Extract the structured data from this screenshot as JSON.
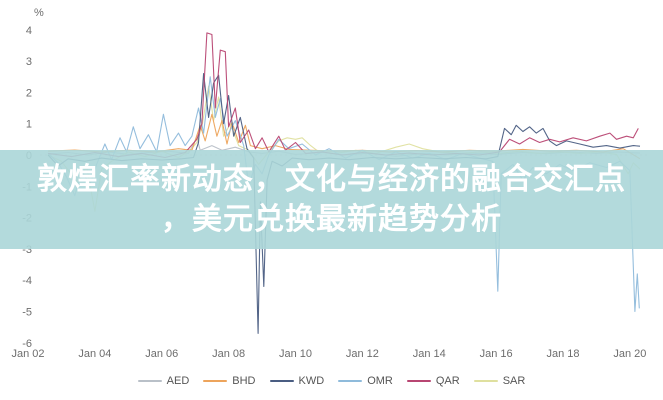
{
  "overlay": {
    "line1": "敦煌汇率新动态，文化与经济的融合交汇点",
    "line2": "，美元兑换最新趋势分析",
    "band_color": "rgba(171,214,216,0.9)",
    "text_color": "#ffffff"
  },
  "chart_data": {
    "type": "line",
    "title": "",
    "unit_label": "%",
    "xlabel": "",
    "ylabel": "%",
    "ylim": [
      -6,
      4
    ],
    "yticks": [
      4,
      3,
      2,
      1,
      0,
      -1,
      -2,
      -3,
      -4,
      -5,
      -6
    ],
    "xticks": [
      {
        "day": 2,
        "label": "Jan 02"
      },
      {
        "day": 4,
        "label": "Jan 04"
      },
      {
        "day": 6,
        "label": "Jan 06"
      },
      {
        "day": 8,
        "label": "Jan 08"
      },
      {
        "day": 10,
        "label": "Jan 10"
      },
      {
        "day": 12,
        "label": "Jan 12"
      },
      {
        "day": 14,
        "label": "Jan 14"
      },
      {
        "day": 16,
        "label": "Jan 16"
      },
      {
        "day": 18,
        "label": "Jan 18"
      },
      {
        "day": 20,
        "label": "Jan 20"
      }
    ],
    "grid": "dashed zero line only",
    "legend_position": "bottom",
    "zero_line_color": "#d9d9d9",
    "series": [
      {
        "name": "AED",
        "color": "#b9c0c8",
        "points": [
          [
            2.6,
            0.03
          ],
          [
            3.2,
            0.08
          ],
          [
            3.8,
            0.0
          ],
          [
            4.4,
            0.1
          ],
          [
            5.0,
            0.02
          ],
          [
            5.6,
            0.08
          ],
          [
            6.2,
            0.12
          ],
          [
            6.8,
            0.05
          ],
          [
            7.05,
            0.55
          ],
          [
            7.15,
            0.15
          ],
          [
            7.5,
            0.3
          ],
          [
            7.8,
            0.15
          ],
          [
            8.2,
            0.25
          ],
          [
            8.6,
            0.1
          ],
          [
            9.0,
            0.05
          ],
          [
            9.5,
            0.12
          ],
          [
            10.0,
            0.02
          ],
          [
            10.8,
            0.08
          ],
          [
            11.5,
            0.0
          ],
          [
            12.2,
            0.06
          ],
          [
            13.0,
            -0.04
          ],
          [
            13.8,
            0.05
          ],
          [
            14.5,
            0.0
          ],
          [
            15.2,
            0.06
          ],
          [
            16.0,
            0.02
          ],
          [
            16.8,
            0.08
          ],
          [
            17.5,
            0.04
          ],
          [
            18.2,
            0.1
          ],
          [
            19.0,
            0.05
          ],
          [
            19.6,
            0.1
          ],
          [
            20.3,
            0.06
          ]
        ]
      },
      {
        "name": "BHD",
        "color": "#eda45c",
        "points": [
          [
            2.6,
            0.12
          ],
          [
            3.4,
            0.16
          ],
          [
            4.2,
            0.1
          ],
          [
            5.0,
            0.15
          ],
          [
            5.8,
            0.1
          ],
          [
            6.5,
            0.2
          ],
          [
            6.9,
            0.15
          ],
          [
            7.15,
            0.95
          ],
          [
            7.3,
            0.45
          ],
          [
            7.5,
            1.3
          ],
          [
            7.65,
            0.6
          ],
          [
            7.8,
            1.1
          ],
          [
            7.95,
            0.35
          ],
          [
            8.1,
            1.05
          ],
          [
            8.3,
            0.4
          ],
          [
            8.5,
            0.95
          ],
          [
            8.65,
            0.3
          ],
          [
            9.0,
            0.2
          ],
          [
            9.4,
            0.3
          ],
          [
            9.8,
            0.18
          ],
          [
            10.5,
            0.15
          ],
          [
            11.2,
            0.12
          ],
          [
            12.0,
            0.15
          ],
          [
            12.8,
            0.1
          ],
          [
            13.6,
            0.14
          ],
          [
            14.4,
            0.1
          ],
          [
            15.2,
            0.15
          ],
          [
            16.0,
            0.12
          ],
          [
            16.8,
            0.18
          ],
          [
            17.6,
            0.12
          ],
          [
            18.4,
            0.15
          ],
          [
            19.2,
            0.1
          ],
          [
            19.8,
            0.2
          ],
          [
            20.3,
            -0.12
          ]
        ]
      },
      {
        "name": "KWD",
        "color": "#4a5d82",
        "points": [
          [
            2.6,
            0.0
          ],
          [
            2.9,
            -0.35
          ],
          [
            3.2,
            -0.12
          ],
          [
            3.7,
            -0.2
          ],
          [
            4.2,
            -0.1
          ],
          [
            4.8,
            -0.18
          ],
          [
            5.4,
            -0.12
          ],
          [
            6.0,
            -0.16
          ],
          [
            6.6,
            -0.12
          ],
          [
            6.95,
            -0.08
          ],
          [
            7.1,
            0.4
          ],
          [
            7.25,
            2.6
          ],
          [
            7.4,
            1.2
          ],
          [
            7.55,
            2.3
          ],
          [
            7.7,
            2.55
          ],
          [
            7.85,
            1.0
          ],
          [
            8.0,
            1.9
          ],
          [
            8.15,
            0.6
          ],
          [
            8.35,
            1.2
          ],
          [
            8.55,
            0.2
          ],
          [
            8.75,
            -0.1
          ],
          [
            8.88,
            -5.7
          ],
          [
            8.95,
            -1.5
          ],
          [
            9.05,
            -4.2
          ],
          [
            9.15,
            -0.8
          ],
          [
            9.3,
            -0.2
          ],
          [
            9.6,
            -0.35
          ],
          [
            9.9,
            -0.1
          ],
          [
            10.4,
            -0.15
          ],
          [
            11.0,
            -0.1
          ],
          [
            11.6,
            -0.15
          ],
          [
            12.3,
            -0.08
          ],
          [
            13.0,
            -0.12
          ],
          [
            13.7,
            -0.08
          ],
          [
            14.4,
            -0.12
          ],
          [
            15.1,
            -0.08
          ],
          [
            15.7,
            -0.12
          ],
          [
            16.05,
            -0.05
          ],
          [
            16.25,
            0.85
          ],
          [
            16.45,
            0.65
          ],
          [
            16.6,
            0.95
          ],
          [
            16.8,
            0.75
          ],
          [
            17.0,
            0.9
          ],
          [
            17.2,
            0.7
          ],
          [
            17.4,
            0.85
          ],
          [
            17.6,
            0.45
          ],
          [
            17.8,
            0.3
          ],
          [
            18.1,
            0.45
          ],
          [
            18.5,
            0.35
          ],
          [
            18.9,
            0.25
          ],
          [
            19.3,
            0.3
          ],
          [
            19.7,
            0.22
          ],
          [
            20.1,
            0.3
          ],
          [
            20.3,
            0.28
          ]
        ]
      },
      {
        "name": "OMR",
        "color": "#8fbbdb",
        "points": [
          [
            2.6,
            0.05
          ],
          [
            2.9,
            -0.25
          ],
          [
            3.15,
            -0.7
          ],
          [
            3.4,
            -1.3
          ],
          [
            3.6,
            -0.5
          ],
          [
            3.85,
            -0.95
          ],
          [
            4.05,
            -0.3
          ],
          [
            4.3,
            0.35
          ],
          [
            4.5,
            -0.15
          ],
          [
            4.75,
            0.55
          ],
          [
            4.95,
            0.1
          ],
          [
            5.15,
            0.9
          ],
          [
            5.35,
            0.2
          ],
          [
            5.6,
            0.65
          ],
          [
            5.85,
            0.1
          ],
          [
            6.05,
            1.3
          ],
          [
            6.25,
            0.3
          ],
          [
            6.5,
            0.7
          ],
          [
            6.7,
            0.3
          ],
          [
            6.9,
            0.6
          ],
          [
            7.1,
            1.5
          ],
          [
            7.25,
            0.7
          ],
          [
            7.45,
            2.5
          ],
          [
            7.6,
            1.2
          ],
          [
            7.75,
            1.8
          ],
          [
            7.95,
            0.6
          ],
          [
            8.2,
            1.1
          ],
          [
            8.45,
            0.3
          ],
          [
            8.6,
            -1.0
          ],
          [
            8.8,
            -0.3
          ],
          [
            9.0,
            -0.6
          ],
          [
            9.2,
            0.0
          ],
          [
            9.5,
            0.5
          ],
          [
            9.8,
            0.2
          ],
          [
            10.2,
            0.35
          ],
          [
            10.6,
            0.0
          ],
          [
            11.0,
            0.2
          ],
          [
            11.5,
            -0.1
          ],
          [
            12.0,
            0.15
          ],
          [
            12.5,
            -0.15
          ],
          [
            13.0,
            0.1
          ],
          [
            13.5,
            -0.1
          ],
          [
            14.0,
            0.05
          ],
          [
            14.5,
            -0.15
          ],
          [
            15.0,
            0.05
          ],
          [
            15.5,
            -0.1
          ],
          [
            15.9,
            -0.2
          ],
          [
            16.05,
            -4.35
          ],
          [
            16.15,
            -0.6
          ],
          [
            16.5,
            -0.3
          ],
          [
            16.8,
            -0.8
          ],
          [
            17.1,
            -0.4
          ],
          [
            17.5,
            -0.6
          ],
          [
            17.9,
            -0.3
          ],
          [
            18.3,
            -0.5
          ],
          [
            18.8,
            -0.25
          ],
          [
            19.3,
            -0.4
          ],
          [
            19.7,
            -0.2
          ],
          [
            20.0,
            -0.5
          ],
          [
            20.15,
            -5.0
          ],
          [
            20.22,
            -3.8
          ],
          [
            20.28,
            -4.9
          ]
        ]
      },
      {
        "name": "QAR",
        "color": "#b84672",
        "points": [
          [
            2.6,
            0.05
          ],
          [
            3.3,
            -0.05
          ],
          [
            4.0,
            0.08
          ],
          [
            4.7,
            -0.05
          ],
          [
            5.4,
            0.05
          ],
          [
            6.1,
            -0.08
          ],
          [
            6.7,
            0.08
          ],
          [
            7.05,
            0.5
          ],
          [
            7.2,
            1.0
          ],
          [
            7.35,
            3.9
          ],
          [
            7.5,
            3.85
          ],
          [
            7.6,
            1.5
          ],
          [
            7.75,
            3.35
          ],
          [
            7.9,
            3.3
          ],
          [
            8.0,
            0.9
          ],
          [
            8.2,
            1.5
          ],
          [
            8.35,
            0.4
          ],
          [
            8.6,
            0.8
          ],
          [
            8.8,
            0.2
          ],
          [
            9.0,
            0.55
          ],
          [
            9.2,
            0.1
          ],
          [
            9.5,
            0.6
          ],
          [
            9.7,
            0.15
          ],
          [
            10.0,
            0.4
          ],
          [
            10.3,
            0.05
          ],
          [
            10.8,
            0.1
          ],
          [
            11.4,
            0.0
          ],
          [
            12.0,
            0.08
          ],
          [
            12.7,
            0.0
          ],
          [
            13.4,
            0.06
          ],
          [
            14.1,
            0.0
          ],
          [
            14.8,
            0.05
          ],
          [
            15.5,
            0.0
          ],
          [
            16.1,
            0.1
          ],
          [
            16.4,
            0.5
          ],
          [
            16.7,
            0.35
          ],
          [
            17.0,
            0.55
          ],
          [
            17.3,
            0.4
          ],
          [
            17.6,
            0.5
          ],
          [
            17.9,
            0.42
          ],
          [
            18.3,
            0.55
          ],
          [
            18.7,
            0.45
          ],
          [
            19.1,
            0.6
          ],
          [
            19.4,
            0.7
          ],
          [
            19.6,
            0.5
          ],
          [
            19.9,
            0.6
          ],
          [
            20.1,
            0.55
          ],
          [
            20.25,
            0.85
          ]
        ]
      },
      {
        "name": "SAR",
        "color": "#dfe09f",
        "points": [
          [
            2.6,
            0.0
          ],
          [
            3.0,
            -0.2
          ],
          [
            3.5,
            -0.9
          ],
          [
            3.75,
            -0.35
          ],
          [
            4.0,
            -1.8
          ],
          [
            4.2,
            -0.45
          ],
          [
            4.5,
            -0.2
          ],
          [
            5.0,
            0.1
          ],
          [
            5.5,
            -0.05
          ],
          [
            6.0,
            0.12
          ],
          [
            6.5,
            -0.08
          ],
          [
            6.85,
            0.15
          ],
          [
            7.05,
            0.4
          ],
          [
            7.2,
            0.9
          ],
          [
            7.4,
            2.2
          ],
          [
            7.55,
            1.1
          ],
          [
            7.7,
            1.85
          ],
          [
            7.85,
            0.6
          ],
          [
            8.05,
            1.0
          ],
          [
            8.3,
            0.3
          ],
          [
            8.6,
            0.15
          ],
          [
            8.9,
            -0.3
          ],
          [
            9.2,
            0.1
          ],
          [
            9.5,
            0.45
          ],
          [
            9.75,
            0.55
          ],
          [
            10.0,
            0.5
          ],
          [
            10.2,
            0.55
          ],
          [
            10.45,
            0.3
          ],
          [
            10.7,
            0.1
          ],
          [
            11.2,
            0.05
          ],
          [
            11.8,
            0.15
          ],
          [
            12.4,
            0.05
          ],
          [
            13.0,
            0.25
          ],
          [
            13.4,
            0.35
          ],
          [
            13.8,
            0.2
          ],
          [
            14.3,
            0.1
          ],
          [
            14.9,
            0.05
          ],
          [
            15.5,
            0.1
          ],
          [
            16.1,
            0.05
          ],
          [
            16.7,
            0.12
          ],
          [
            17.3,
            0.05
          ],
          [
            17.9,
            0.1
          ],
          [
            18.5,
            0.05
          ],
          [
            19.1,
            0.1
          ],
          [
            19.6,
            0.02
          ],
          [
            19.95,
            -0.6
          ],
          [
            20.1,
            -0.25
          ],
          [
            20.3,
            -0.45
          ]
        ]
      }
    ],
    "legend": [
      {
        "label": "AED",
        "color": "#b9c0c8"
      },
      {
        "label": "BHD",
        "color": "#eda45c"
      },
      {
        "label": "KWD",
        "color": "#4a5d82"
      },
      {
        "label": "OMR",
        "color": "#8fbbdb"
      },
      {
        "label": "QAR",
        "color": "#b84672"
      },
      {
        "label": "SAR",
        "color": "#dfe09f"
      }
    ]
  }
}
